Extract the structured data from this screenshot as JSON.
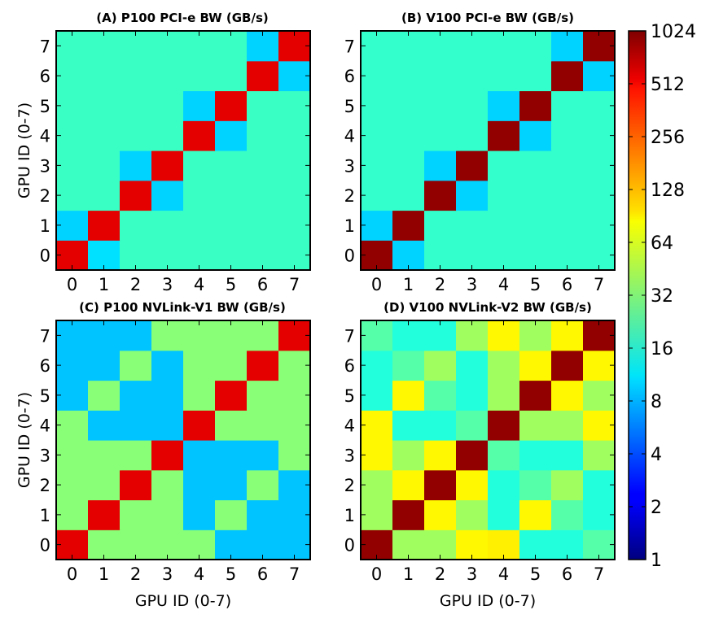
{
  "chart_data": {
    "type": "heatmap",
    "colorbar": {
      "scale": "log2",
      "range": [
        1,
        1024
      ],
      "tick_labels": [
        "1",
        "2",
        "4",
        "8",
        "16",
        "32",
        "64",
        "128",
        "256",
        "512",
        "1024"
      ],
      "tick_values": [
        1,
        2,
        4,
        8,
        16,
        32,
        64,
        128,
        256,
        512,
        1024
      ],
      "colormap": "jet"
    },
    "panels": [
      {
        "title": "(A) P100 PCI-e BW (GB/s)",
        "ylabel": "GPU ID (0-7)",
        "xlabel": "",
        "x_ticks": [
          "0",
          "1",
          "2",
          "3",
          "4",
          "5",
          "6",
          "7"
        ],
        "y_ticks": [
          "0",
          "1",
          "2",
          "3",
          "4",
          "5",
          "6",
          "7"
        ],
        "matrix": [
          [
            512,
            11,
            20,
            20,
            20,
            20,
            20,
            20
          ],
          [
            10,
            512,
            20,
            20,
            20,
            20,
            20,
            20
          ],
          [
            20,
            20,
            512,
            10,
            20,
            20,
            20,
            20
          ],
          [
            20,
            20,
            10,
            512,
            20,
            20,
            20,
            20
          ],
          [
            20,
            20,
            20,
            20,
            512,
            10,
            20,
            20
          ],
          [
            20,
            20,
            20,
            20,
            10,
            512,
            20,
            20
          ],
          [
            20,
            20,
            20,
            20,
            20,
            20,
            512,
            10
          ],
          [
            20,
            20,
            20,
            20,
            20,
            20,
            10,
            512
          ]
        ]
      },
      {
        "title": "(B) V100 PCI-e BW (GB/s)",
        "ylabel": "",
        "xlabel": "",
        "x_ticks": [
          "0",
          "1",
          "2",
          "3",
          "4",
          "5",
          "6",
          "7"
        ],
        "y_ticks": [
          "0",
          "1",
          "2",
          "3",
          "4",
          "5",
          "6",
          "7"
        ],
        "matrix": [
          [
            900,
            10,
            19,
            19,
            19,
            19,
            19,
            19
          ],
          [
            10,
            900,
            19,
            19,
            19,
            19,
            19,
            19
          ],
          [
            19,
            19,
            900,
            10,
            19,
            19,
            19,
            19
          ],
          [
            19,
            19,
            10,
            900,
            19,
            19,
            19,
            19
          ],
          [
            19,
            19,
            19,
            19,
            900,
            10,
            19,
            19
          ],
          [
            19,
            19,
            19,
            19,
            10,
            900,
            19,
            19
          ],
          [
            19,
            19,
            19,
            19,
            19,
            19,
            900,
            10
          ],
          [
            19,
            19,
            19,
            19,
            19,
            19,
            10,
            900
          ]
        ]
      },
      {
        "title": "(C) P100 NVLink-V1 BW (GB/s)",
        "ylabel": "GPU ID (0-7)",
        "xlabel": "GPU ID (0-7)",
        "x_ticks": [
          "0",
          "1",
          "2",
          "3",
          "4",
          "5",
          "6",
          "7"
        ],
        "y_ticks": [
          "0",
          "1",
          "2",
          "3",
          "4",
          "5",
          "6",
          "7"
        ],
        "matrix": [
          [
            512,
            34,
            34,
            34,
            34,
            9,
            9,
            9
          ],
          [
            34,
            512,
            34,
            34,
            9,
            34,
            9,
            9
          ],
          [
            34,
            34,
            512,
            34,
            9,
            9,
            34,
            9
          ],
          [
            34,
            34,
            34,
            512,
            9,
            9,
            9,
            34
          ],
          [
            34,
            9,
            9,
            9,
            512,
            34,
            34,
            34
          ],
          [
            9,
            34,
            9,
            9,
            34,
            512,
            34,
            34
          ],
          [
            9,
            9,
            34,
            9,
            34,
            34,
            512,
            34
          ],
          [
            9,
            9,
            9,
            34,
            34,
            34,
            34,
            512
          ]
        ]
      },
      {
        "title": "(D) V100 NVLink-V2 BW (GB/s)",
        "ylabel": "",
        "xlabel": "GPU ID (0-7)",
        "x_ticks": [
          "0",
          "1",
          "2",
          "3",
          "4",
          "5",
          "6",
          "7"
        ],
        "y_ticks": [
          "0",
          "1",
          "2",
          "3",
          "4",
          "5",
          "6",
          "7"
        ],
        "matrix": [
          [
            900,
            40,
            40,
            80,
            85,
            17,
            17,
            24
          ],
          [
            40,
            900,
            80,
            40,
            17,
            80,
            24,
            17
          ],
          [
            40,
            80,
            900,
            80,
            17,
            24,
            40,
            17
          ],
          [
            80,
            40,
            80,
            900,
            24,
            17,
            17,
            40
          ],
          [
            80,
            17,
            17,
            24,
            900,
            40,
            40,
            80
          ],
          [
            17,
            80,
            24,
            17,
            40,
            900,
            80,
            40
          ],
          [
            17,
            24,
            40,
            17,
            40,
            80,
            900,
            80
          ],
          [
            24,
            17,
            17,
            40,
            80,
            40,
            80,
            900
          ]
        ]
      }
    ]
  }
}
